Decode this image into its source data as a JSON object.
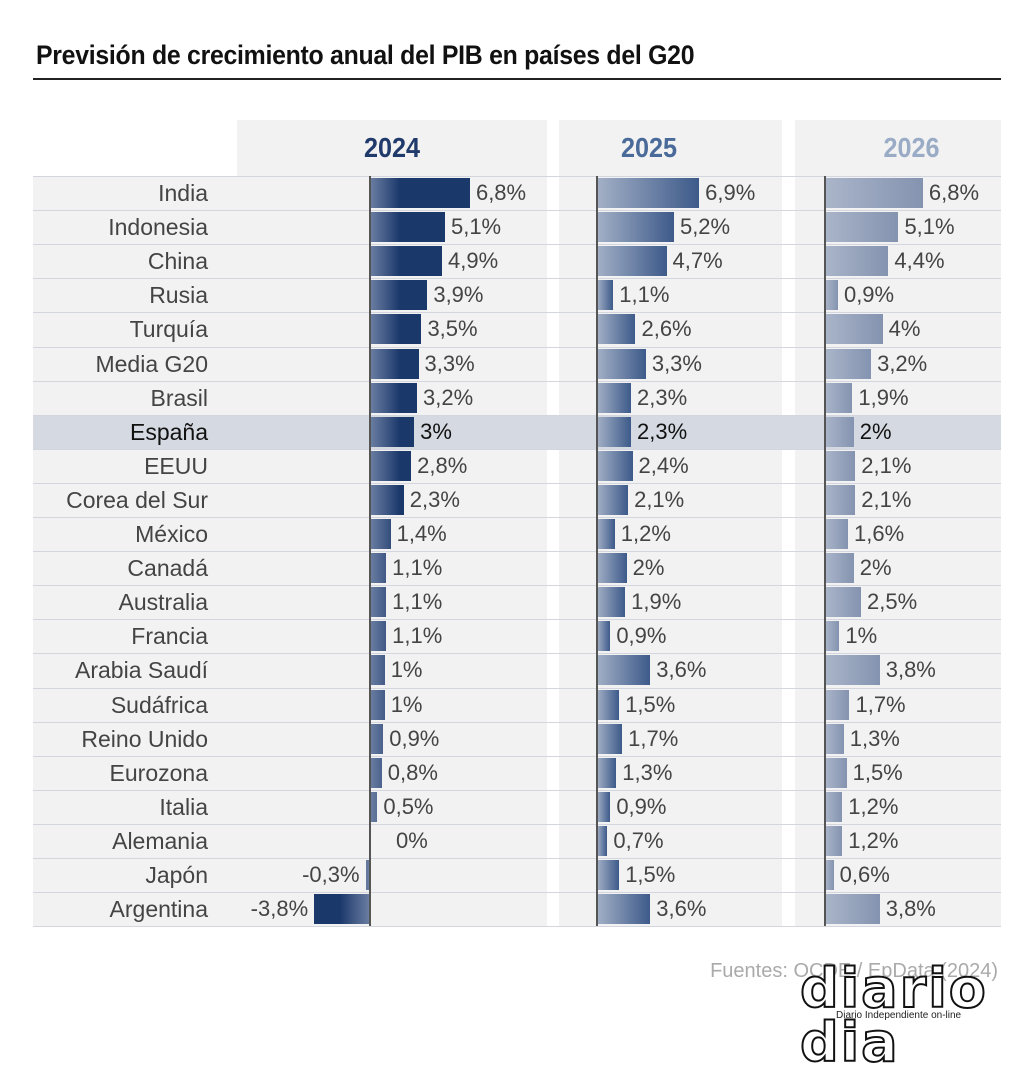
{
  "title": "Previsión de crecimiento anual del PIB en países del G20",
  "years": [
    "2024",
    "2025",
    "2026"
  ],
  "year_colors": [
    "#1f3a6b",
    "#4a6b9a",
    "#9aabc6"
  ],
  "highlight_country": "España",
  "rows": [
    {
      "country": "India",
      "v2024": "6,8%",
      "v2025": "6,9%",
      "v2026": "6,8%"
    },
    {
      "country": "Indonesia",
      "v2024": "5,1%",
      "v2025": "5,2%",
      "v2026": "5,1%"
    },
    {
      "country": "China",
      "v2024": "4,9%",
      "v2025": "4,7%",
      "v2026": "4,4%"
    },
    {
      "country": "Rusia",
      "v2024": "3,9%",
      "v2025": "1,1%",
      "v2026": "0,9%"
    },
    {
      "country": "Turquía",
      "v2024": "3,5%",
      "v2025": "2,6%",
      "v2026": "4%"
    },
    {
      "country": "Media G20",
      "v2024": "3,3%",
      "v2025": "3,3%",
      "v2026": "3,2%"
    },
    {
      "country": "Brasil",
      "v2024": "3,2%",
      "v2025": "2,3%",
      "v2026": "1,9%"
    },
    {
      "country": "España",
      "v2024": "3%",
      "v2025": "2,3%",
      "v2026": "2%"
    },
    {
      "country": "EEUU",
      "v2024": "2,8%",
      "v2025": "2,4%",
      "v2026": "2,1%"
    },
    {
      "country": "Corea del Sur",
      "v2024": "2,3%",
      "v2025": "2,1%",
      "v2026": "2,1%"
    },
    {
      "country": "México",
      "v2024": "1,4%",
      "v2025": "1,2%",
      "v2026": "1,6%"
    },
    {
      "country": "Canadá",
      "v2024": "1,1%",
      "v2025": "2%",
      "v2026": "2%"
    },
    {
      "country": "Australia",
      "v2024": "1,1%",
      "v2025": "1,9%",
      "v2026": "2,5%"
    },
    {
      "country": "Francia",
      "v2024": "1,1%",
      "v2025": "0,9%",
      "v2026": "1%"
    },
    {
      "country": "Arabia Saudí",
      "v2024": "1%",
      "v2025": "3,6%",
      "v2026": "3,8%"
    },
    {
      "country": "Sudáfrica",
      "v2024": "1%",
      "v2025": "1,5%",
      "v2026": "1,7%"
    },
    {
      "country": "Reino Unido",
      "v2024": "0,9%",
      "v2025": "1,7%",
      "v2026": "1,3%"
    },
    {
      "country": "Eurozona",
      "v2024": "0,8%",
      "v2025": "1,3%",
      "v2026": "1,5%"
    },
    {
      "country": "Italia",
      "v2024": "0,5%",
      "v2025": "0,9%",
      "v2026": "1,2%"
    },
    {
      "country": "Alemania",
      "v2024": "0%",
      "v2025": "0,7%",
      "v2026": "1,2%"
    },
    {
      "country": "Japón",
      "v2024": "-0,3%",
      "v2025": "1,5%",
      "v2026": "0,6%"
    },
    {
      "country": "Argentina",
      "v2024": "-3,8%",
      "v2025": "3,6%",
      "v2026": "3,8%"
    }
  ],
  "source": "Fuentes: OCDE / EpData (2024)",
  "logo": {
    "name": "diario dia",
    "tagline": "Diario Independiente on-line"
  },
  "chart_data": {
    "type": "bar",
    "orientation": "horizontal",
    "title": "Previsión de crecimiento anual del PIB en países del G20",
    "categories": [
      "India",
      "Indonesia",
      "China",
      "Rusia",
      "Turquía",
      "Media G20",
      "Brasil",
      "España",
      "EEUU",
      "Corea del Sur",
      "México",
      "Canadá",
      "Australia",
      "Francia",
      "Arabia Saudí",
      "Sudáfrica",
      "Reino Unido",
      "Eurozona",
      "Italia",
      "Alemania",
      "Japón",
      "Argentina"
    ],
    "series": [
      {
        "name": "2024",
        "values": [
          6.8,
          5.1,
          4.9,
          3.9,
          3.5,
          3.3,
          3.2,
          3.0,
          2.8,
          2.3,
          1.4,
          1.1,
          1.1,
          1.1,
          1.0,
          1.0,
          0.9,
          0.8,
          0.5,
          0.0,
          -0.3,
          -3.8
        ]
      },
      {
        "name": "2025",
        "values": [
          6.9,
          5.2,
          4.7,
          1.1,
          2.6,
          3.3,
          2.3,
          2.3,
          2.4,
          2.1,
          1.2,
          2.0,
          1.9,
          0.9,
          3.6,
          1.5,
          1.7,
          1.3,
          0.9,
          0.7,
          1.5,
          3.6
        ]
      },
      {
        "name": "2026",
        "values": [
          6.8,
          5.1,
          4.4,
          0.9,
          4.0,
          3.2,
          1.9,
          2.0,
          2.1,
          2.1,
          1.6,
          2.0,
          2.5,
          1.0,
          3.8,
          1.7,
          1.3,
          1.5,
          1.2,
          1.2,
          0.6,
          3.8
        ]
      }
    ],
    "unit": "%",
    "xlabel": "",
    "ylabel": "",
    "legend": "column headers (small multiples)",
    "grid": false,
    "annotations": [
      "España row highlighted"
    ],
    "source": "Fuentes: OCDE / EpData (2024)"
  }
}
